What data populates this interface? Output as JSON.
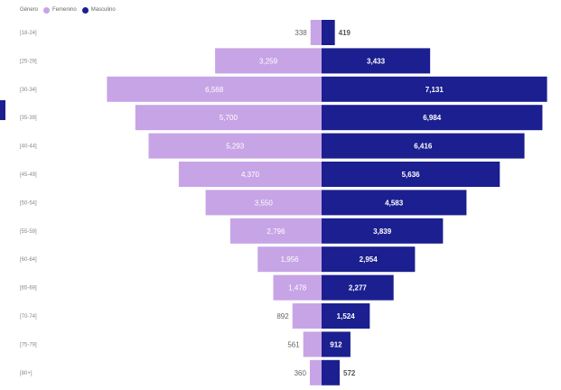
{
  "legend": {
    "title": "Género",
    "items": [
      {
        "label": "Femenino",
        "color": "#c7a4e6"
      },
      {
        "label": "Masculino",
        "color": "#1b1f8f"
      }
    ]
  },
  "colors": {
    "female": "#c7a4e6",
    "male": "#1b1f8f",
    "female_label_inside": "#ffffff",
    "female_label_outside": "#666666",
    "male_label_inside": "#ffffff",
    "male_label_outside": "#555555",
    "tick": "#888888"
  },
  "chart_data": {
    "type": "bar",
    "orientation": "horizontal-diverging",
    "categories": [
      "[18-24]",
      "[25-29]",
      "[30-34]",
      "[35-39]",
      "[40-44]",
      "[45-49]",
      "[50-54]",
      "[55-59]",
      "[60-64]",
      "[65-69]",
      "[70-74]",
      "[75-79]",
      "[80+]"
    ],
    "series": [
      {
        "name": "Femenino",
        "values": [
          338,
          3259,
          6568,
          5700,
          5293,
          4370,
          3550,
          2796,
          1956,
          1478,
          892,
          561,
          360
        ]
      },
      {
        "name": "Masculino",
        "values": [
          419,
          3433,
          7131,
          6984,
          6416,
          5636,
          4583,
          3839,
          2954,
          2277,
          1524,
          912,
          572
        ]
      }
    ],
    "data_labels": {
      "Femenino": [
        "338",
        "3,259",
        "6,568",
        "5,700",
        "5,293",
        "4,370",
        "3,550",
        "2,796",
        "1,956",
        "1,478",
        "892",
        "561",
        "360"
      ],
      "Masculino": [
        "419",
        "3,433",
        "7,131",
        "6,984",
        "6,416",
        "5,636",
        "4,583",
        "3,839",
        "2,954",
        "2,277",
        "1,524",
        "912",
        "572"
      ]
    },
    "title": "",
    "xlabel": "",
    "ylabel": "",
    "xlim": [
      -6800,
      7400
    ],
    "grid": false,
    "legend_position": "top-left"
  }
}
